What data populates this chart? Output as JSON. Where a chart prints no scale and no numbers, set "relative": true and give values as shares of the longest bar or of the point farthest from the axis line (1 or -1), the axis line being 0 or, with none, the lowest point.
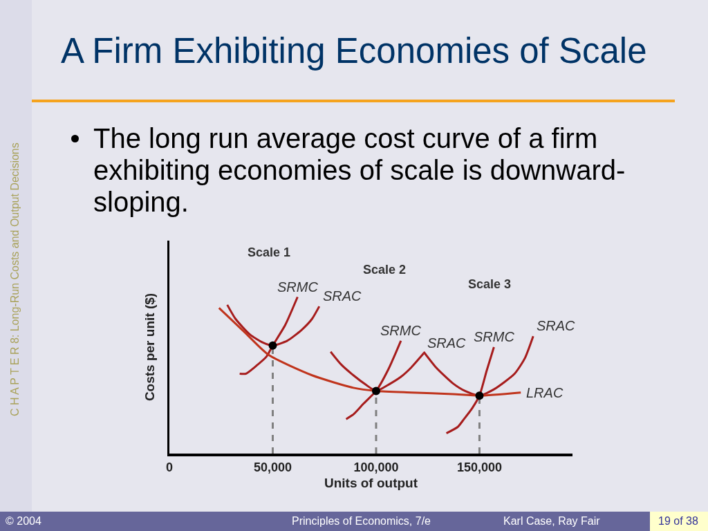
{
  "chart_data": {
    "type": "line",
    "title": "A Firm Exhibiting Economies of Scale",
    "subtitle": "The long run average cost curve of a firm exhibiting economies of scale is downward-sloping.",
    "xlabel": "Units of output",
    "ylabel": "Costs per unit ($)",
    "relative": true,
    "xlim": [
      0,
      195000
    ],
    "xticks": [
      0,
      {
        "value": 50000,
        "label": "50,000"
      },
      {
        "value": 100000,
        "label": "100,000"
      },
      {
        "value": 150000,
        "label": "150,000"
      }
    ],
    "series": [
      {
        "type": "line",
        "line_style": "dashed",
        "color": "#808080",
        "x": [
          50000,
          50000
        ],
        "values": [
          0,
          0.69
        ]
      },
      {
        "type": "line",
        "line_style": "dashed",
        "color": "#808080",
        "x": [
          100000,
          100000
        ],
        "values": [
          0,
          0.4
        ]
      },
      {
        "type": "line",
        "line_style": "dashed",
        "color": "#808080",
        "x": [
          150000,
          150000
        ],
        "values": [
          0,
          0.37
        ]
      },
      {
        "name": "SRAC",
        "color": "#a61c1c",
        "x": [
          28000,
          32000,
          39000,
          45000,
          50000,
          57000,
          64000,
          69000,
          72500
        ],
        "values": [
          0.95,
          0.86,
          0.76,
          0.71,
          0.69,
          0.72,
          0.79,
          0.86,
          0.94
        ]
      },
      {
        "name": "SRMC",
        "color": "#a61c1c",
        "x": [
          34000,
          37000,
          42000,
          47000,
          50000,
          56000,
          62000
        ],
        "values": [
          0.51,
          0.51,
          0.56,
          0.62,
          0.69,
          0.82,
          1.0
        ]
      },
      {
        "name": "SRAC",
        "color": "#a61c1c",
        "x": [
          78000,
          83000,
          89000,
          95000,
          100000,
          106000,
          112000,
          117000,
          123000
        ],
        "values": [
          0.65,
          0.57,
          0.5,
          0.44,
          0.4,
          0.44,
          0.49,
          0.55,
          0.64
        ]
      },
      {
        "name": "SRMC",
        "color": "#a61c1c",
        "x": [
          85500,
          89000,
          94000,
          100000,
          106000,
          112000
        ],
        "values": [
          0.22,
          0.25,
          0.32,
          0.4,
          0.54,
          0.72
        ]
      },
      {
        "name": "SRAC",
        "color": "#a61c1c",
        "x": [
          123000,
          129000,
          137000,
          143000,
          150000,
          157000,
          167000,
          172000,
          176000
        ],
        "values": [
          0.65,
          0.55,
          0.45,
          0.4,
          0.37,
          0.41,
          0.51,
          0.61,
          0.75
        ]
      },
      {
        "name": "SRMC",
        "color": "#a61c1c",
        "x": [
          134000,
          139500,
          142500,
          146500,
          150000,
          153500,
          157000
        ],
        "values": [
          0.13,
          0.17,
          0.22,
          0.29,
          0.37,
          0.53,
          0.68
        ]
      },
      {
        "name": "LRAC",
        "color": "#c0341c",
        "x": [
          24000,
          36000,
          48000,
          69000,
          89000,
          100000,
          117000,
          137000,
          150000,
          170000
        ],
        "values": [
          0.93,
          0.78,
          0.63,
          0.5,
          0.42,
          0.4,
          0.39,
          0.38,
          0.37,
          0.39
        ]
      },
      {
        "type": "scatter",
        "marker": "circle",
        "color": "#000000",
        "x": [
          50000,
          100000,
          150000
        ],
        "values": [
          0.69,
          0.4,
          0.37
        ]
      }
    ],
    "annotations": [
      "Scale 1",
      "Scale 2",
      "Scale 3",
      "C H A P T E R 8: Long-Run Costs and Output Decisions",
      "© 2004",
      "Principles of Economics, 7/e",
      "Karl Case, Ray Fair",
      "19 of 38"
    ]
  }
}
